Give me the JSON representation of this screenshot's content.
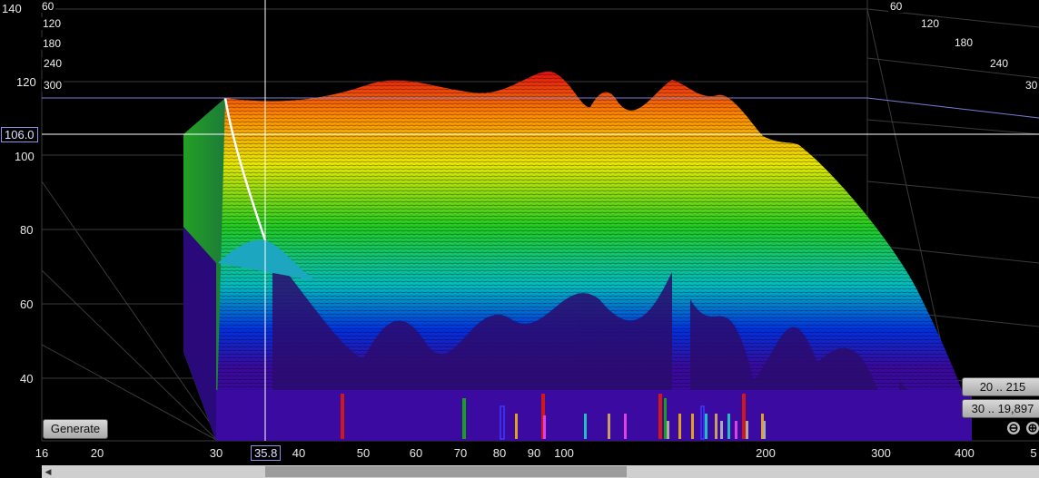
{
  "y_axis": {
    "labels": [
      "140",
      "120",
      "100",
      "80",
      "60",
      "40"
    ],
    "values": [
      140,
      120,
      100,
      80,
      60,
      40
    ],
    "range": [
      30,
      145
    ]
  },
  "x_axis": {
    "labels": [
      "16",
      "20",
      "30",
      "40",
      "50",
      "60",
      "70",
      "80",
      "90",
      "100",
      "200",
      "300",
      "400",
      "5"
    ]
  },
  "time_axis": {
    "left_labels": [
      "60",
      "120",
      "180",
      "240",
      "300"
    ],
    "right_labels": [
      "60",
      "120",
      "180",
      "240",
      "30"
    ]
  },
  "cursor": {
    "level": "106.0",
    "frequency": "35.8"
  },
  "buttons": {
    "generate": "Generate",
    "range1": "20 .. 215",
    "range2": "30 .. 19,897"
  },
  "zoom": {
    "out": "⊖",
    "in": "⊕"
  },
  "colors": {
    "background": "#000000",
    "grid": "#3a3a3a",
    "cursor": "#ffffff",
    "floor": "#3b0aa0"
  }
}
